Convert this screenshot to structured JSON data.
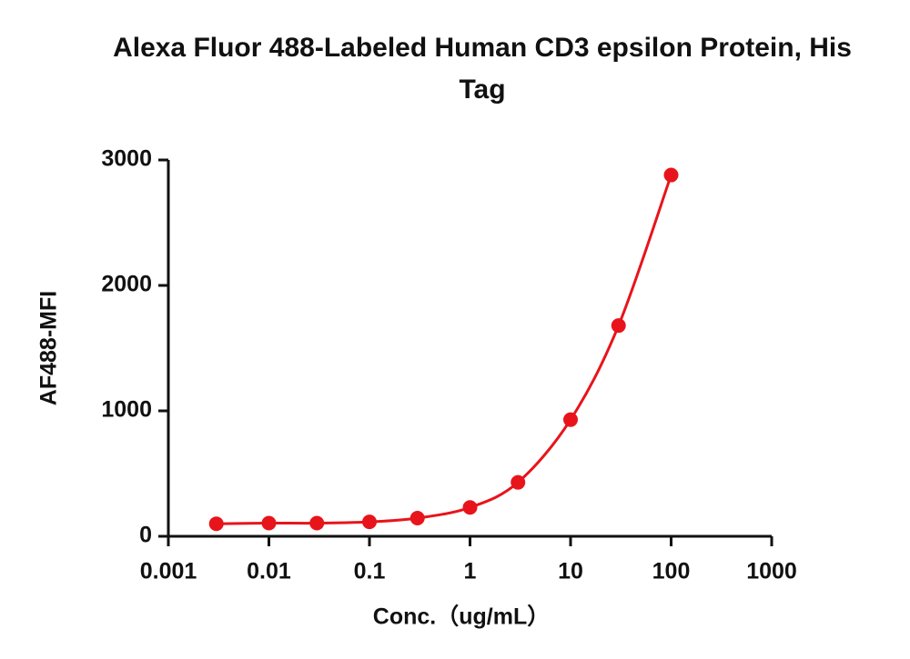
{
  "chart_data": {
    "type": "scatter",
    "title": "Alexa Fluor 488-Labeled Human CD3 epsilon Protein, His Tag",
    "x_label": "Conc.（ug/mL）",
    "y_label": "AF488-MFI",
    "xscale": "log",
    "xlim": [
      0.001,
      1000
    ],
    "xticks": [
      0.001,
      0.01,
      0.1,
      1,
      10,
      100,
      1000
    ],
    "ylim": [
      0,
      3000
    ],
    "yticks": [
      0,
      1000,
      2000,
      3000
    ],
    "fit_curve": true,
    "series": [
      {
        "color": "#e8141b",
        "x": [
          0.003,
          0.01,
          0.03,
          0.1,
          0.3,
          1,
          3,
          10,
          30,
          100
        ],
        "values": [
          100,
          105,
          105,
          115,
          145,
          230,
          430,
          930,
          1680,
          2880
        ]
      }
    ]
  }
}
